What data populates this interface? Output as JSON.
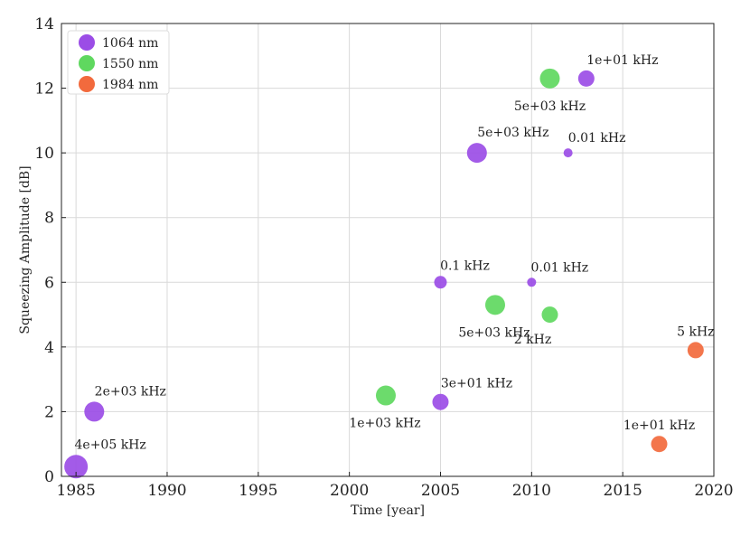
{
  "chart_data": {
    "type": "scatter",
    "title": "",
    "xlabel": "Time [year]",
    "ylabel": "Squeezing Amplitude [dB]",
    "xlim": [
      1984.2,
      2020
    ],
    "ylim": [
      0,
      14
    ],
    "xticks": [
      1985,
      1990,
      1995,
      2000,
      2005,
      2010,
      2015,
      2020
    ],
    "yticks": [
      0,
      2,
      4,
      6,
      8,
      10,
      12,
      14
    ],
    "grid": true,
    "legend_position": "top-left",
    "series": [
      {
        "name": "1064 nm",
        "color": "#9b4de6",
        "points": [
          {
            "x": 1985,
            "y": 0.3,
            "label": "4e+05 kHz",
            "size": 5
          },
          {
            "x": 1986,
            "y": 2.0,
            "label": "2e+03 kHz",
            "size": 4
          },
          {
            "x": 2005,
            "y": 2.3,
            "label": "3e+01 kHz",
            "size": 3
          },
          {
            "x": 2005,
            "y": 6.0,
            "label": "0.1 kHz",
            "size": 2
          },
          {
            "x": 2007,
            "y": 10.0,
            "label": "5e+03 kHz",
            "size": 4
          },
          {
            "x": 2010,
            "y": 6.0,
            "label": "0.01 kHz",
            "size": 1
          },
          {
            "x": 2012,
            "y": 10.0,
            "label": "0.01 kHz",
            "size": 1
          },
          {
            "x": 2013,
            "y": 12.3,
            "label": "1e+01 kHz",
            "size": 3
          }
        ]
      },
      {
        "name": "1550 nm",
        "color": "#5fd85f",
        "points": [
          {
            "x": 2002,
            "y": 2.5,
            "label": "1e+03 kHz",
            "size": 4
          },
          {
            "x": 2008,
            "y": 5.3,
            "label": "5e+03 kHz",
            "size": 4
          },
          {
            "x": 2011,
            "y": 5.0,
            "label": "2 kHz",
            "size": 3
          },
          {
            "x": 2011,
            "y": 12.3,
            "label": "5e+03 kHz",
            "size": 4
          }
        ]
      },
      {
        "name": "1984 nm",
        "color": "#f26a3d",
        "points": [
          {
            "x": 2017,
            "y": 1.0,
            "label": "1e+01 kHz",
            "size": 3
          },
          {
            "x": 2019,
            "y": 3.9,
            "label": "5 kHz",
            "size": 3
          }
        ]
      }
    ]
  }
}
